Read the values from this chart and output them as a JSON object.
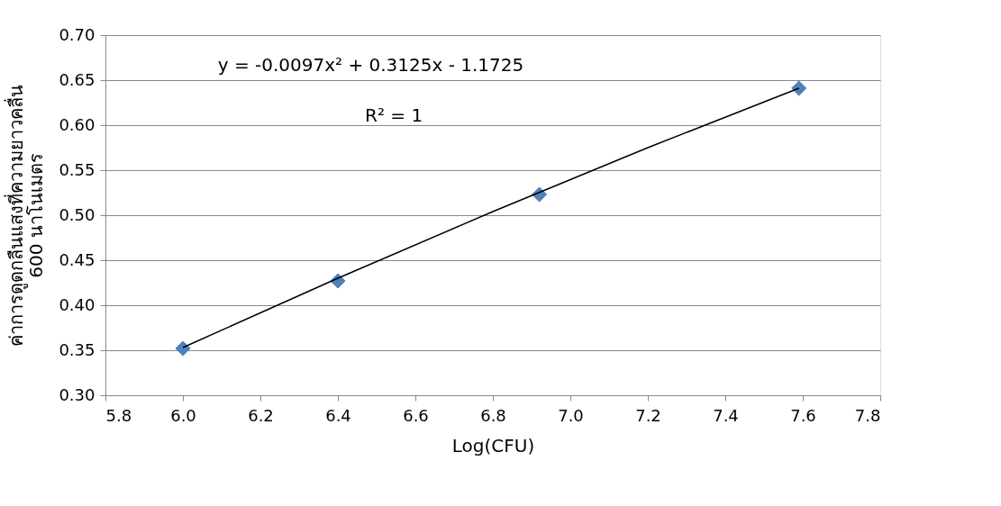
{
  "chart_data": {
    "type": "scatter",
    "xlabel": "Log(CFU)",
    "ylabel": "ค่าการดูดกลืนแสงที่ความยาวคลื่น\n600 นาโนเมตร",
    "xlim": [
      5.8,
      7.8
    ],
    "xticks": [
      {
        "value": 5.8,
        "label": "5.8"
      },
      {
        "value": 6.0,
        "label": "6.0"
      },
      {
        "value": 6.2,
        "label": "6.2"
      },
      {
        "value": 6.4,
        "label": "6.4"
      },
      {
        "value": 6.6,
        "label": "6.6"
      },
      {
        "value": 6.8,
        "label": "6.8"
      },
      {
        "value": 7.0,
        "label": "7.0"
      },
      {
        "value": 7.2,
        "label": "7.2"
      },
      {
        "value": 7.4,
        "label": "7.4"
      },
      {
        "value": 7.6,
        "label": "7.6"
      },
      {
        "value": 7.8,
        "label": "7.8"
      }
    ],
    "ylim": [
      0.3,
      0.7
    ],
    "yticks": [
      {
        "value": 0.3,
        "label": "0.30"
      },
      {
        "value": 0.35,
        "label": "0.35"
      },
      {
        "value": 0.4,
        "label": "0.40"
      },
      {
        "value": 0.45,
        "label": "0.45"
      },
      {
        "value": 0.5,
        "label": "0.50"
      },
      {
        "value": 0.55,
        "label": "0.55"
      },
      {
        "value": 0.6,
        "label": "0.60"
      },
      {
        "value": 0.65,
        "label": "0.65"
      },
      {
        "value": 0.7,
        "label": "0.70"
      }
    ],
    "grid": "y",
    "series": [
      {
        "type": "scatter",
        "color": "#4f81bd",
        "marker": "diamond",
        "x": [
          6.0,
          6.4,
          6.92,
          7.59
        ],
        "values": [
          0.352,
          0.427,
          0.523,
          0.641
        ]
      },
      {
        "type": "line",
        "color": "#000000",
        "line_style": "solid",
        "x": [
          6.0,
          6.4,
          6.8,
          7.2,
          7.59
        ],
        "values": [
          0.353,
          0.43,
          0.504,
          0.575,
          0.641
        ]
      }
    ],
    "annotations": [
      "y = -0.0097x² + 0.3125x - 1.1725",
      "R² = 1"
    ]
  }
}
